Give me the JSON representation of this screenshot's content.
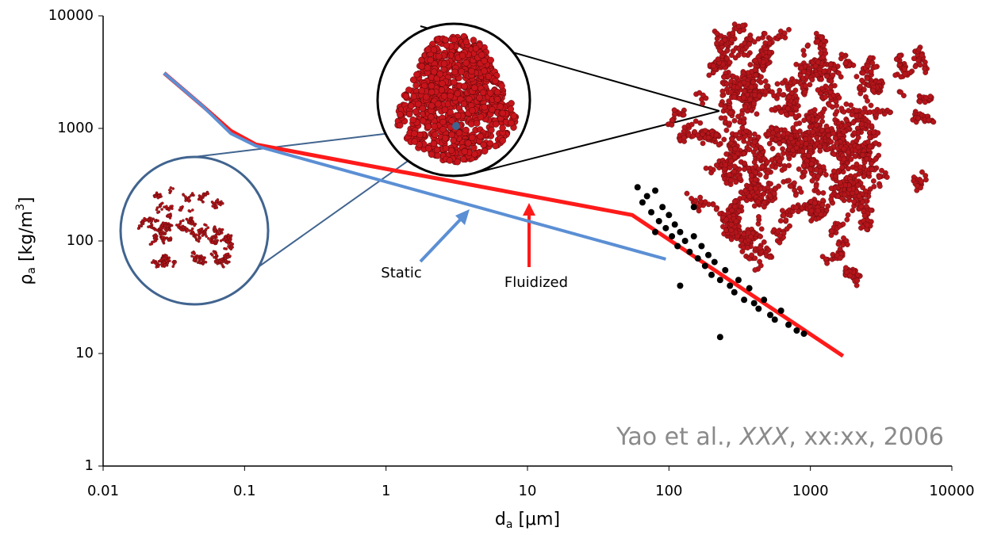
{
  "chart_data": {
    "type": "scatter",
    "xlabel": {
      "symbol": "d",
      "sub": "a",
      "unit": " [μm]"
    },
    "ylabel": {
      "symbol": "ρ",
      "sub": "a",
      "unit": " [kg/m",
      "sup": "3",
      "close": "]"
    },
    "xscale": "log",
    "yscale": "log",
    "xlim": [
      0.01,
      10000
    ],
    "ylim": [
      1,
      10000
    ],
    "xticks": [
      0.01,
      0.1,
      1,
      10,
      100,
      1000,
      10000
    ],
    "yticks": [
      1,
      10,
      100,
      1000,
      10000
    ],
    "series": [
      {
        "name": "Fluidized",
        "mode": "line",
        "color": "#ff1a1a",
        "x": [
          0.027,
          0.05,
          0.08,
          0.12,
          55,
          1700
        ],
        "values": [
          3100,
          1600,
          950,
          720,
          170,
          9.5
        ]
      },
      {
        "name": "Static",
        "mode": "line",
        "color": "#5b8fd4",
        "x": [
          0.027,
          0.05,
          0.08,
          0.12,
          95
        ],
        "values": [
          3100,
          1600,
          900,
          700,
          69
        ]
      },
      {
        "mode": "points",
        "color": "#000000",
        "x": [
          60,
          65,
          70,
          75,
          80,
          85,
          90,
          95,
          100,
          105,
          110,
          115,
          120,
          130,
          140,
          150,
          160,
          170,
          180,
          190,
          200,
          210,
          230,
          250,
          270,
          290,
          310,
          340,
          370,
          400,
          430,
          470,
          520,
          560,
          620,
          700,
          800,
          900,
          120,
          230,
          150,
          80
        ],
        "values": [
          300,
          220,
          250,
          180,
          280,
          150,
          200,
          130,
          170,
          110,
          140,
          90,
          120,
          100,
          80,
          110,
          70,
          90,
          60,
          75,
          50,
          65,
          45,
          55,
          40,
          35,
          45,
          30,
          38,
          28,
          25,
          30,
          22,
          20,
          24,
          18,
          16,
          15,
          40,
          14,
          200,
          120
        ]
      }
    ],
    "annotations": {
      "static": "Static",
      "fluidized": "Fluidized"
    },
    "citation": {
      "before": "Yao et al., ",
      "journal": "XXX",
      "after": ", xx:xx, 2006"
    }
  }
}
